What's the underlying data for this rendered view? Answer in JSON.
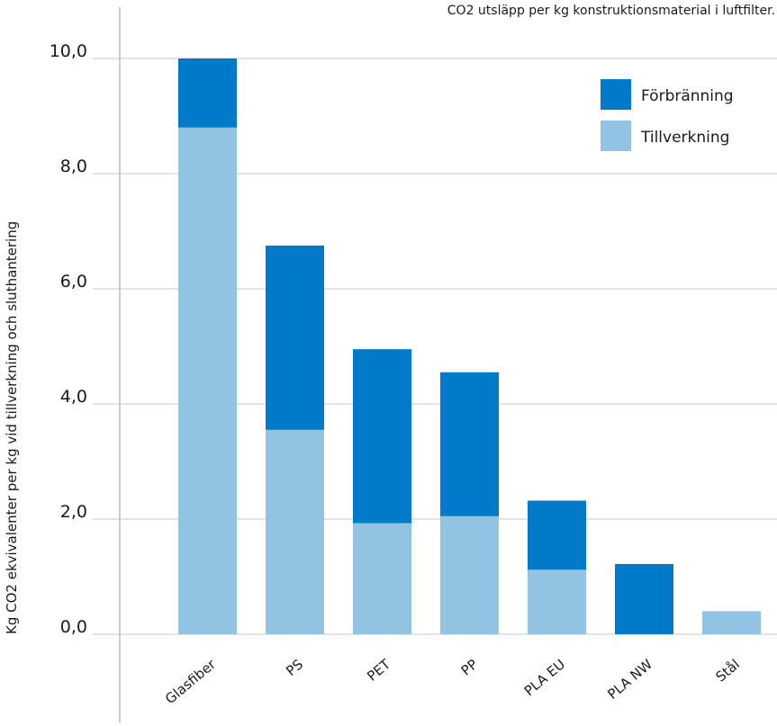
{
  "chart_data": {
    "type": "bar",
    "stacked": true,
    "title": "CO2 utsläpp per kg konstruktionsmaterial i luftfilter.",
    "xlabel": "",
    "ylabel": "Kg CO2 ekvivalenter per kg vid tillverkning och sluthantering",
    "ylim": [
      0,
      10
    ],
    "yticks": [
      "0,0",
      "2,0",
      "4,0",
      "6,0",
      "8,0",
      "10,0"
    ],
    "ytick_values": [
      0,
      2,
      4,
      6,
      8,
      10
    ],
    "grid": true,
    "legend_position": "top-right",
    "categories": [
      "Glasfiber",
      "PS",
      "PET",
      "PP",
      "PLA EU",
      "PLA NW",
      "Stål"
    ],
    "series": [
      {
        "name": "Tillverkning",
        "color": "#94c4e4",
        "values": [
          8.8,
          3.55,
          1.93,
          2.05,
          1.12,
          0,
          0.4
        ]
      },
      {
        "name": "Förbränning",
        "color": "#007ac9",
        "values": [
          1.2,
          3.2,
          3.02,
          2.5,
          1.2,
          1.22,
          0
        ]
      }
    ],
    "legend_order": [
      "Förbränning",
      "Tillverkning"
    ],
    "colors": {
      "grid": "#c8c8c8",
      "axis": "#999999",
      "text": "#1a1a1a"
    }
  }
}
